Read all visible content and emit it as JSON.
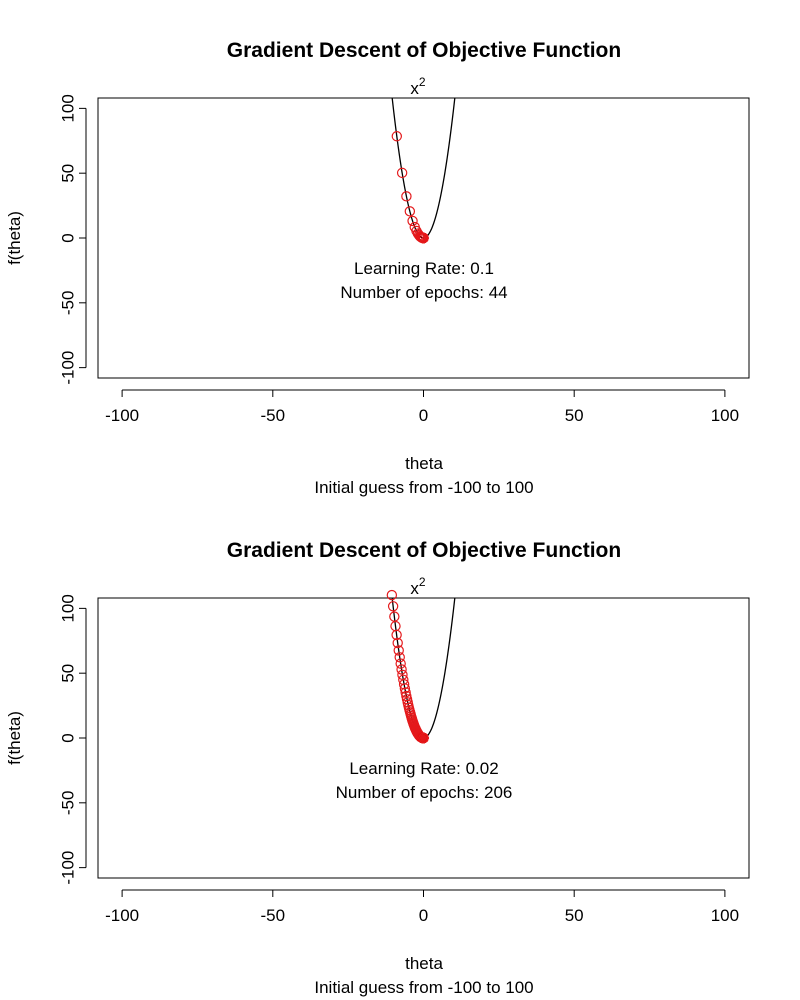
{
  "chart_data": [
    {
      "type": "scatter",
      "title": "Gradient Descent of Objective Function",
      "function_label": "x",
      "function_label_sup": "2",
      "xlabel": "theta",
      "subtitle": "Initial guess from -100 to 100",
      "ylabel": "f(theta)",
      "xlim": [
        -108,
        108
      ],
      "ylim": [
        -108,
        108
      ],
      "xticks": [
        -100,
        -50,
        0,
        50,
        100
      ],
      "yticks": [
        -100,
        -50,
        0,
        50,
        100
      ],
      "curve": {
        "expr": "x^2",
        "xrange": [
          -11,
          11
        ]
      },
      "descent": {
        "start": -8.86,
        "learning_rate": 0.1,
        "epochs": 44
      },
      "annotation": {
        "lr_label": "Learning Rate:  0.1",
        "epochs_label": "Number of epochs:  44",
        "x": 0,
        "y": -42
      },
      "colors": {
        "points": "#e41a1c",
        "curve": "#000000"
      }
    },
    {
      "type": "scatter",
      "title": "Gradient Descent of Objective Function",
      "function_label": "x",
      "function_label_sup": "2",
      "xlabel": "theta",
      "subtitle": "Initial guess from -100 to 100",
      "ylabel": "f(theta)",
      "xlim": [
        -108,
        108
      ],
      "ylim": [
        -108,
        108
      ],
      "xticks": [
        -100,
        -50,
        0,
        50,
        100
      ],
      "yticks": [
        -100,
        -50,
        0,
        50,
        100
      ],
      "curve": {
        "expr": "x^2",
        "xrange": [
          -11,
          11
        ]
      },
      "descent": {
        "start": -10.5,
        "learning_rate": 0.02,
        "epochs": 206
      },
      "annotation": {
        "lr_label": "Learning Rate:  0.02",
        "epochs_label": "Number of epochs:  206",
        "x": 0,
        "y": -42
      },
      "colors": {
        "points": "#e41a1c",
        "curve": "#000000"
      }
    }
  ]
}
